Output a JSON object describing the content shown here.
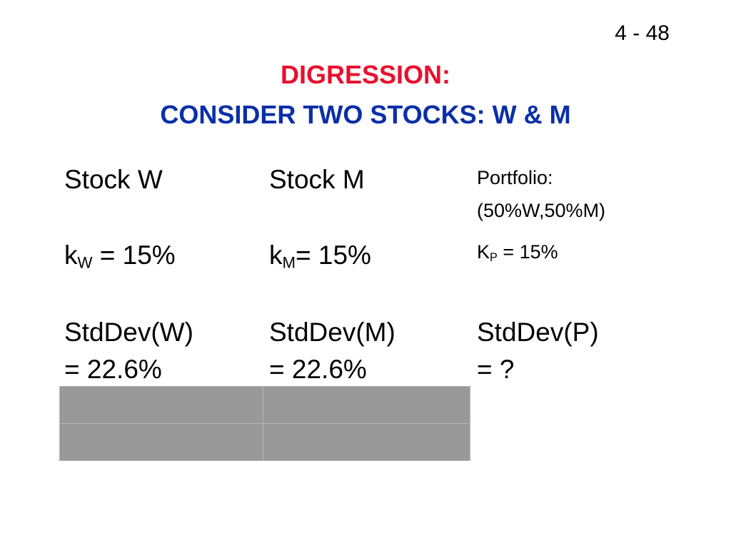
{
  "slide_number": "4 - 48",
  "title": {
    "line1": "DIGRESSION:",
    "line2": "CONSIDER TWO STOCKS: W & M"
  },
  "table": {
    "columns": [
      {
        "header": [
          "Stock W"
        ],
        "return": {
          "symbol": "k",
          "subscript": "W",
          "rest": " = 15%"
        },
        "stddev": [
          "StdDev(W)",
          "= 22.6%"
        ]
      },
      {
        "header": [
          "Stock M"
        ],
        "return": {
          "symbol": "k",
          "subscript": "M",
          "rest": "= 15%"
        },
        "stddev": [
          "StdDev(M)",
          "= 22.6%"
        ]
      },
      {
        "header": [
          "Portfolio:",
          "(50%W,50%M)"
        ],
        "return": {
          "symbol": "K",
          "subscript": "P",
          "rest": " = 15%"
        },
        "stddev": [
          "StdDev(P)",
          "= ?"
        ]
      }
    ]
  }
}
